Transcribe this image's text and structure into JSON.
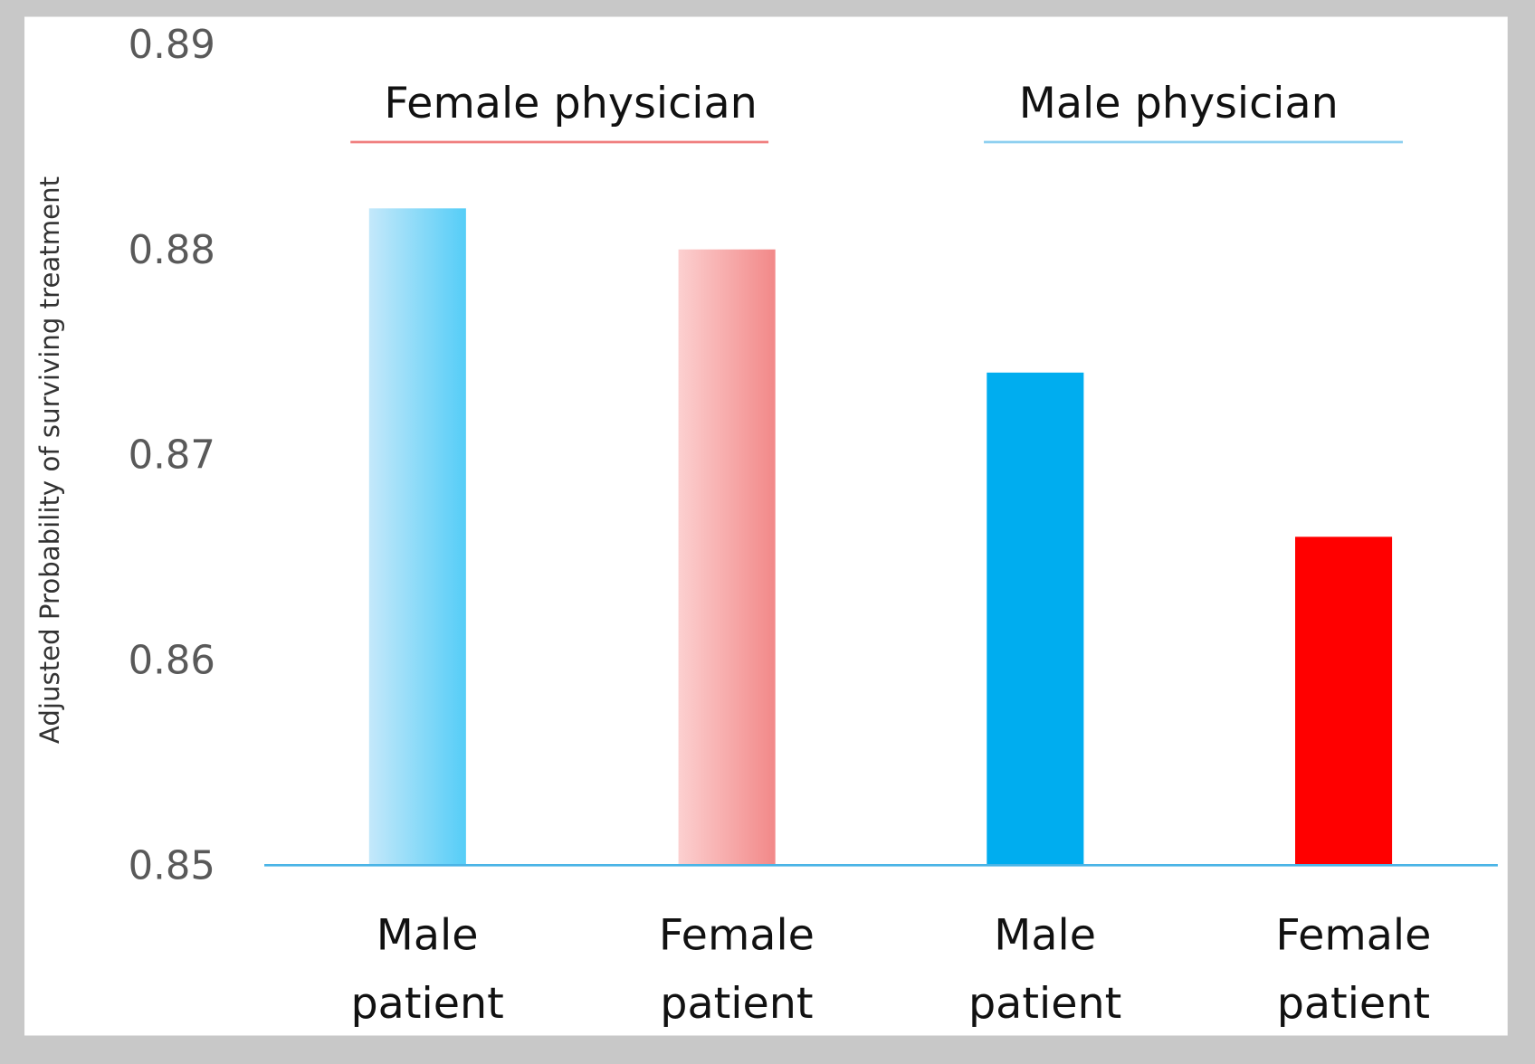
{
  "chart_data": {
    "type": "bar",
    "ylabel": "Adjusted Probability of surviving treatment",
    "ylim": [
      0.85,
      0.89
    ],
    "yticks": [
      "0.85",
      "0.86",
      "0.87",
      "0.88",
      "0.89"
    ],
    "grid": false,
    "groups": [
      {
        "label": "Female physician",
        "color": "#f08080"
      },
      {
        "label": "Male physician",
        "color": "#8fd0f0"
      }
    ],
    "categories": [
      {
        "line1": "Male",
        "line2": "patient"
      },
      {
        "line1": "Female",
        "line2": "patient"
      },
      {
        "line1": "Male",
        "line2": "patient"
      },
      {
        "line1": "Female",
        "line2": "patient"
      }
    ],
    "values": [
      0.882,
      0.88,
      0.874,
      0.866
    ],
    "bar_colors": [
      {
        "from": "#c4e8fa",
        "to": "#55cdf7"
      },
      {
        "from": "#fcd0d0",
        "to": "#f28888"
      },
      {
        "from": "#00adef",
        "to": "#00adef"
      },
      {
        "from": "#ff0000",
        "to": "#ff0000"
      }
    ],
    "axis_color": "#4ab4e6"
  }
}
